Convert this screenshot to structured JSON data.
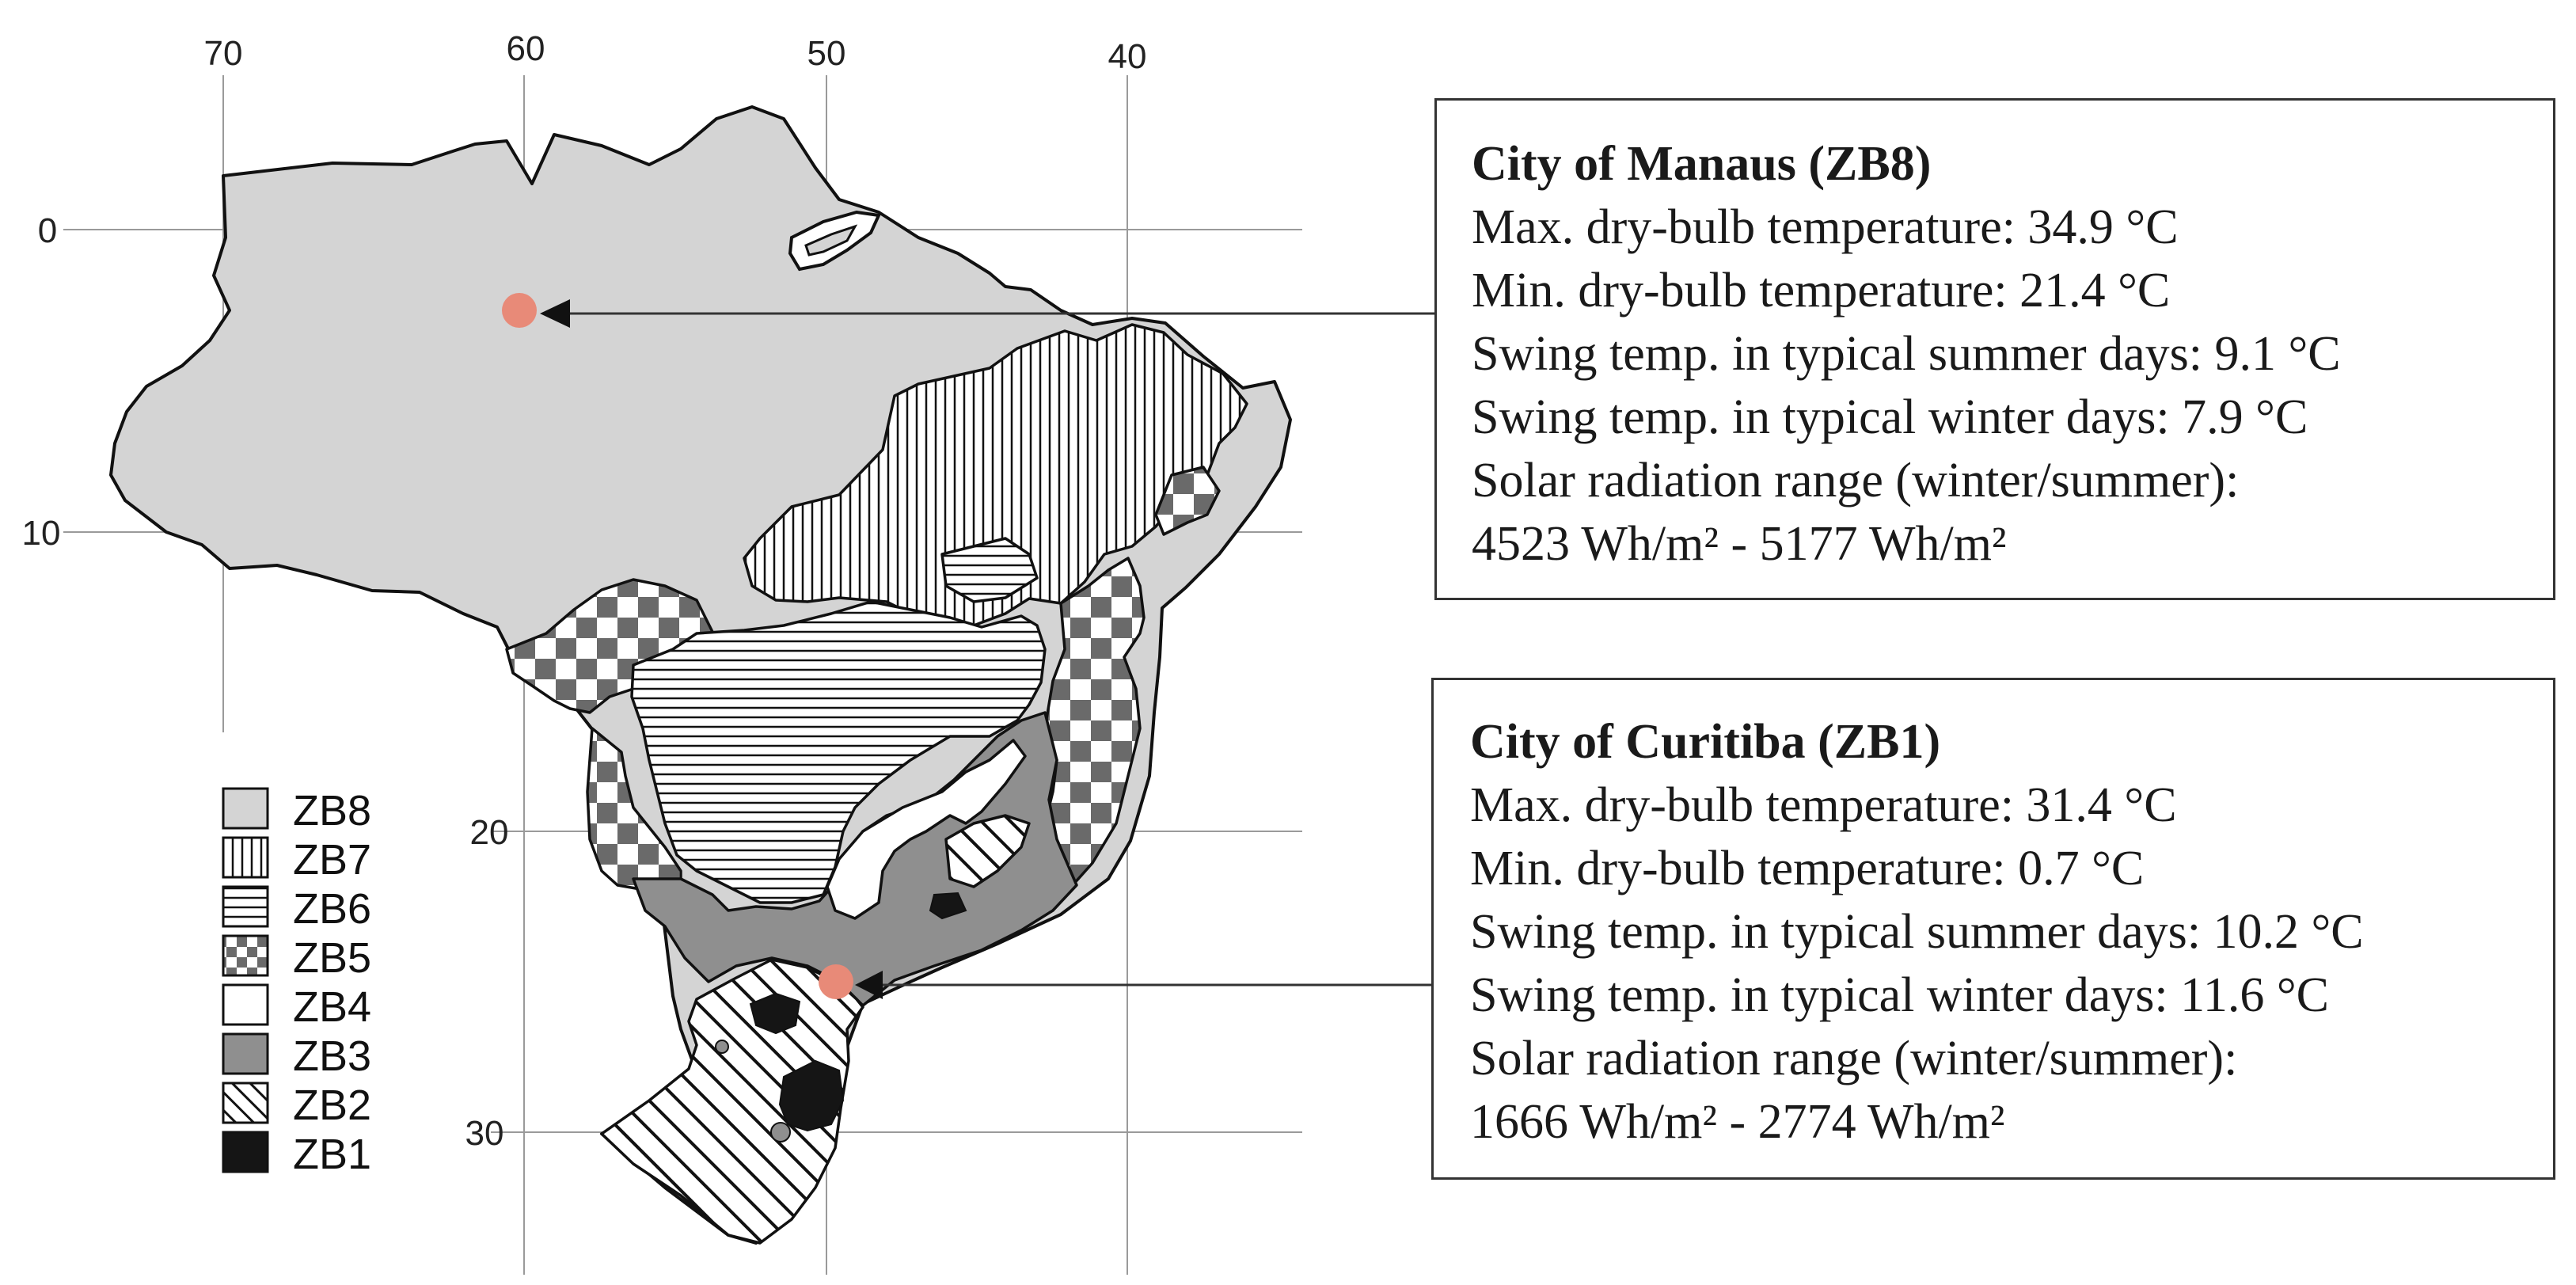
{
  "figure": {
    "axes": {
      "longitude_ticks": [
        "70",
        "60",
        "50",
        "40"
      ],
      "latitude_ticks": [
        "0",
        "10",
        "20",
        "30"
      ]
    },
    "legend": [
      {
        "label": "ZB8",
        "pattern": "light-gray"
      },
      {
        "label": "ZB7",
        "pattern": "vertical-lines"
      },
      {
        "label": "ZB6",
        "pattern": "horizontal-lines"
      },
      {
        "label": "ZB5",
        "pattern": "checkerboard"
      },
      {
        "label": "ZB4",
        "pattern": "white"
      },
      {
        "label": "ZB3",
        "pattern": "medium-gray"
      },
      {
        "label": "ZB2",
        "pattern": "diagonal-lines"
      },
      {
        "label": "ZB1",
        "pattern": "black"
      }
    ],
    "city_marker_color": "#e88a78",
    "colors": {
      "zb8": "#d4d4d4",
      "zb3": "#8f8f8f",
      "zb1": "#151515"
    }
  },
  "manaus": {
    "title": "City of Manaus (ZB8)",
    "max_temp": "Max. dry-bulb temperature: 34.9 °C",
    "min_temp": "Min. dry-bulb temperature: 21.4 °C",
    "swing_summer": "Swing temp. in typical summer days: 9.1 °C",
    "swing_winter": "Swing temp. in typical winter days: 7.9 °C",
    "solar_label": "Solar radiation range (winter/summer):",
    "solar_range": "4523 Wh/m² - 5177 Wh/m²"
  },
  "curitiba": {
    "title": "City of Curitiba (ZB1)",
    "max_temp": "Max. dry-bulb temperature: 31.4 °C",
    "min_temp": "Min. dry-bulb temperature: 0.7 °C",
    "swing_summer": "Swing temp. in typical summer days: 10.2 °C",
    "swing_winter": "Swing temp. in typical winter days: 11.6 °C",
    "solar_label": "Solar radiation range (winter/summer):",
    "solar_range": "1666 Wh/m² - 2774 Wh/m²"
  }
}
